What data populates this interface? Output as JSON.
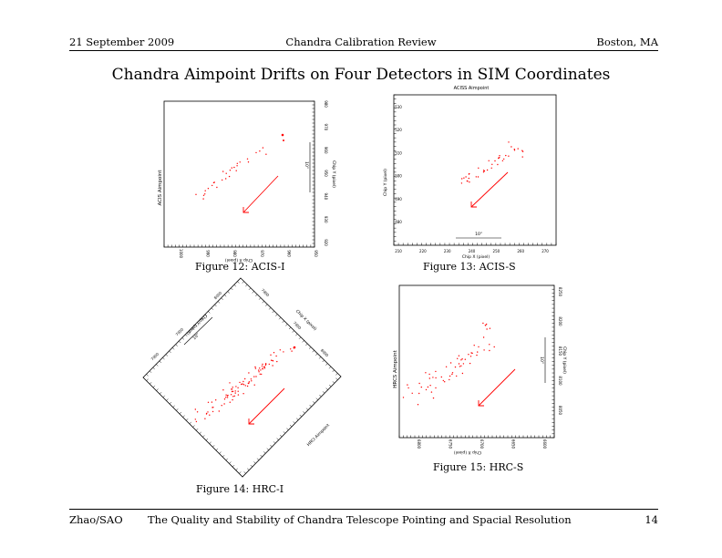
{
  "header": {
    "left": "21 September 2009",
    "center": "Chandra Calibration Review",
    "right": "Boston, MA"
  },
  "title": "Chandra Aimpoint Drifts on Four Detectors in SIM Coordinates",
  "figures": [
    {
      "caption": "Figure 12: ACIS-I",
      "side_label": "ACIS Aimpoint",
      "x_label": "Chip X (pixel)",
      "y_label": "Chip Y (pixel)",
      "x_ticks": [
        "950",
        "960",
        "970",
        "980",
        "990",
        "1000"
      ],
      "y_ticks": [
        "920",
        "930",
        "940",
        "950",
        "960",
        "970",
        "980"
      ],
      "scale_label": "10\"",
      "point_color": "#ff0000"
    },
    {
      "caption": "Figure 13: ACIS-S",
      "top_label": "ACISS Aimpoint",
      "x_label": "Chip X (pixel)",
      "y_label": "Chip Y (pixel)",
      "x_ticks": [
        "210",
        "220",
        "230",
        "240",
        "250",
        "260",
        "270"
      ],
      "y_ticks": [
        "480",
        "490",
        "500",
        "510",
        "520",
        "530"
      ],
      "scale_label": "10\"",
      "point_color": "#ff0000"
    },
    {
      "caption": "Figure 14: HRC-I",
      "corner_label": "HRCI Aimpoint",
      "x_label": "Chip X (pixel)",
      "y_label": "Chip Y (pixel)",
      "tick_labels_a": [
        "7900",
        "7950",
        "8000"
      ],
      "tick_labels_b": [
        "7900",
        "7950",
        "8000"
      ],
      "scale_label": "10\"",
      "point_color": "#ff0000"
    },
    {
      "caption": "Figure 15: HRC-S",
      "side_label": "HRCS Aimpoint",
      "x_label": "Chip X (pixel)",
      "y_label": "Chip Y (pixel)",
      "x_ticks": [
        "6600",
        "6650",
        "6700",
        "6750",
        "6800"
      ],
      "y_ticks": [
        "8050",
        "8100",
        "8150",
        "8200",
        "8250"
      ],
      "scale_label": "10\"",
      "point_color": "#ff0000"
    }
  ],
  "footer": {
    "left": "Zhao/SAO",
    "center": "The Quality and Stability of Chandra Telescope Pointing and Spacial Resolution",
    "right": "14"
  }
}
